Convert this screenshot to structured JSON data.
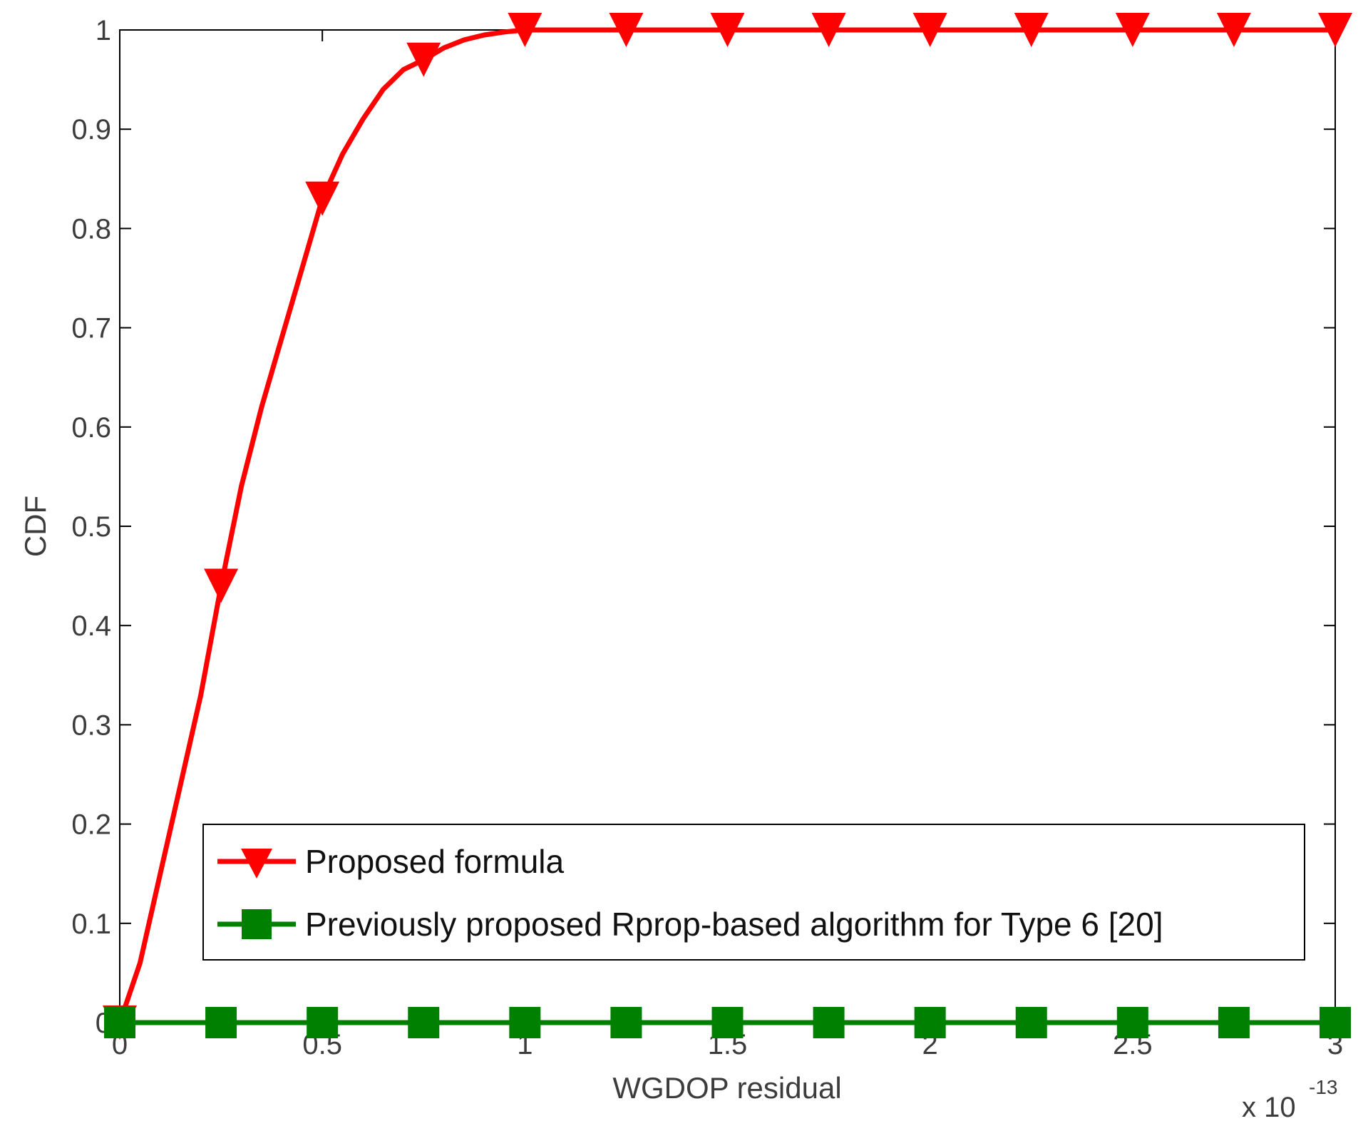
{
  "chart_data": {
    "type": "line",
    "xlabel": "WGDOP residual",
    "ylabel": "CDF",
    "x_multiplier_base": "x 10",
    "x_multiplier_exp": "-13",
    "xlim": [
      0,
      3
    ],
    "ylim": [
      0,
      1
    ],
    "xticks": [
      0,
      0.5,
      1,
      1.5,
      2,
      2.5,
      3
    ],
    "xtick_labels": [
      "0",
      "0.5",
      "1",
      "1.5",
      "2",
      "2.5",
      "3"
    ],
    "yticks": [
      0,
      0.1,
      0.2,
      0.3,
      0.4,
      0.5,
      0.6,
      0.7,
      0.8,
      0.9,
      1
    ],
    "ytick_labels": [
      "0",
      "0.1",
      "0.2",
      "0.3",
      "0.4",
      "0.5",
      "0.6",
      "0.7",
      "0.8",
      "0.9",
      "1"
    ],
    "grid": false,
    "legend_position": "lower-center",
    "series": [
      {
        "name": "Proposed formula",
        "color": "#ff0000",
        "marker": "triangle-down",
        "curve_x": [
          0,
          0.05,
          0.1,
          0.15,
          0.2,
          0.25,
          0.3,
          0.35,
          0.4,
          0.45,
          0.5,
          0.55,
          0.6,
          0.65,
          0.7,
          0.75,
          0.8,
          0.85,
          0.9,
          0.95,
          1.0,
          1.1,
          1.25,
          1.5,
          1.75,
          2.0,
          2.25,
          2.5,
          2.75,
          3.0
        ],
        "curve_y": [
          0,
          0.06,
          0.15,
          0.24,
          0.33,
          0.44,
          0.54,
          0.62,
          0.69,
          0.76,
          0.83,
          0.875,
          0.91,
          0.94,
          0.96,
          0.97,
          0.982,
          0.99,
          0.995,
          0.998,
          1.0,
          1.0,
          1.0,
          1.0,
          1.0,
          1.0,
          1.0,
          1.0,
          1.0,
          1.0
        ],
        "marker_x": [
          0,
          0.25,
          0.5,
          0.75,
          1.0,
          1.25,
          1.5,
          1.75,
          2.0,
          2.25,
          2.5,
          2.75,
          3.0
        ],
        "marker_y": [
          0,
          0.44,
          0.83,
          0.97,
          1.0,
          1.0,
          1.0,
          1.0,
          1.0,
          1.0,
          1.0,
          1.0,
          1.0
        ]
      },
      {
        "name": "Previously proposed Rprop-based algorithm for Type 6 [20]",
        "color": "#008000",
        "marker": "square",
        "curve_x": [
          0,
          3.0
        ],
        "curve_y": [
          0,
          0
        ],
        "marker_x": [
          0,
          0.25,
          0.5,
          0.75,
          1.0,
          1.25,
          1.5,
          1.75,
          2.0,
          2.25,
          2.5,
          2.75,
          3.0
        ],
        "marker_y": [
          0,
          0,
          0,
          0,
          0,
          0,
          0,
          0,
          0,
          0,
          0,
          0,
          0
        ]
      }
    ]
  }
}
